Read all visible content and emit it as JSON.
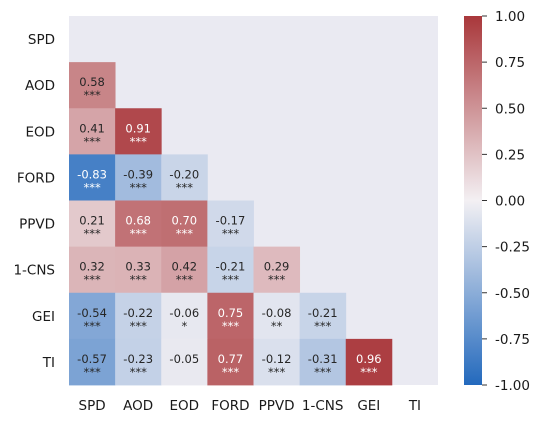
{
  "chart_data": {
    "type": "heatmap",
    "variables": [
      "SPD",
      "AOD",
      "EOD",
      "FORD",
      "PPVD",
      "1-CNS",
      "GEI",
      "TI"
    ],
    "lower_triangle": [
      [],
      [
        {
          "value": "0.58",
          "sig": "***"
        }
      ],
      [
        {
          "value": "0.41",
          "sig": "***"
        },
        {
          "value": "0.91",
          "sig": "***"
        }
      ],
      [
        {
          "value": "-0.83",
          "sig": "***"
        },
        {
          "value": "-0.39",
          "sig": "***"
        },
        {
          "value": "-0.20",
          "sig": "***"
        }
      ],
      [
        {
          "value": "0.21",
          "sig": "***"
        },
        {
          "value": "0.68",
          "sig": "***"
        },
        {
          "value": "0.70",
          "sig": "***"
        },
        {
          "value": "-0.17",
          "sig": "***"
        }
      ],
      [
        {
          "value": "0.32",
          "sig": "***"
        },
        {
          "value": "0.33",
          "sig": "***"
        },
        {
          "value": "0.42",
          "sig": "***"
        },
        {
          "value": "-0.21",
          "sig": "***"
        },
        {
          "value": "0.29",
          "sig": "***"
        }
      ],
      [
        {
          "value": "-0.54",
          "sig": "***"
        },
        {
          "value": "-0.22",
          "sig": "***"
        },
        {
          "value": "-0.06",
          "sig": "*"
        },
        {
          "value": "0.75",
          "sig": "***"
        },
        {
          "value": "-0.08",
          "sig": "**"
        },
        {
          "value": "-0.21",
          "sig": "***"
        }
      ],
      [
        {
          "value": "-0.57",
          "sig": "***"
        },
        {
          "value": "-0.23",
          "sig": "***"
        },
        {
          "value": "-0.05",
          "sig": ""
        },
        {
          "value": "0.77",
          "sig": "***"
        },
        {
          "value": "-0.12",
          "sig": "***"
        },
        {
          "value": "-0.31",
          "sig": "***"
        },
        {
          "value": "0.96",
          "sig": "***"
        }
      ]
    ],
    "vmin": -1.0,
    "vmax": 1.0,
    "colormap": "blue-white-red (vlag)",
    "colorbar_ticks": [
      "1.00",
      "0.75",
      "0.50",
      "0.25",
      "0.00",
      "-0.25",
      "-0.50",
      "-0.75",
      "-1.00"
    ],
    "masked_color": "#eaeaf2",
    "colors": {
      "neg": "#2369bd",
      "mid": "#f3f0f3",
      "pos": "#a9373b"
    }
  }
}
